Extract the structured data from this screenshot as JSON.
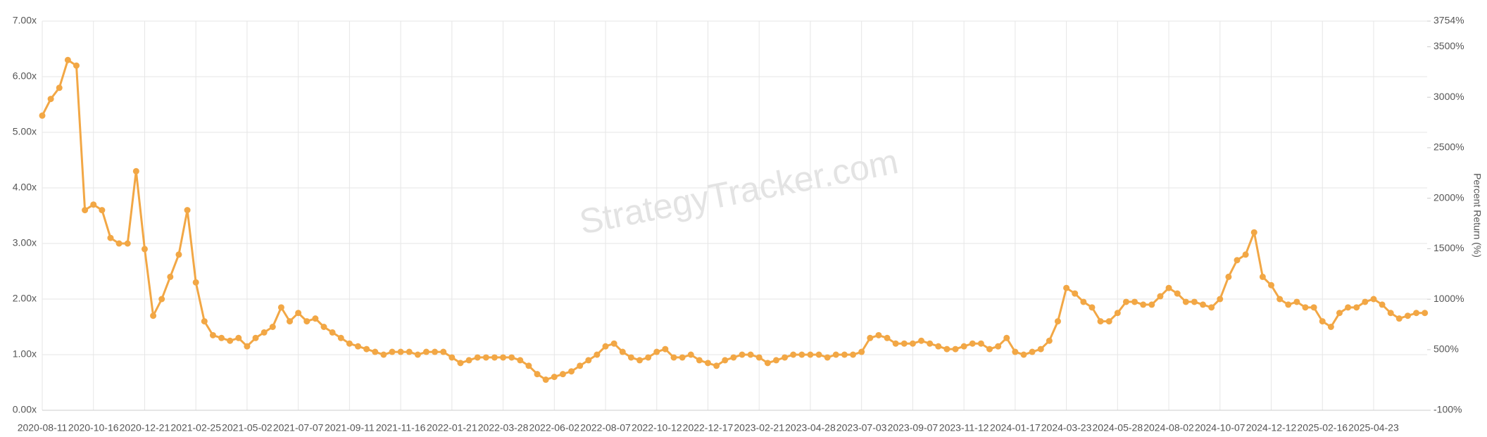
{
  "chart_data": {
    "type": "line",
    "watermark": "StrategyTracker.com",
    "y2label": "Percent Return (%)",
    "color": "#f2a745",
    "grid": true,
    "xlim": [
      "2020-08-11",
      "2025-07-01"
    ],
    "xticks": [
      "2020-08-11",
      "2020-10-16",
      "2020-12-21",
      "2021-02-25",
      "2021-05-02",
      "2021-07-07",
      "2021-09-11",
      "2021-11-16",
      "2022-01-21",
      "2022-03-28",
      "2022-06-02",
      "2022-08-07",
      "2022-10-12",
      "2022-12-17",
      "2023-02-21",
      "2023-04-28",
      "2023-07-03",
      "2023-09-07",
      "2023-11-12",
      "2024-01-17",
      "2024-03-23",
      "2024-05-28",
      "2024-08-02",
      "2024-10-07",
      "2024-12-12",
      "2025-02-16",
      "2025-04-23"
    ],
    "ylim": [
      0,
      7
    ],
    "yticks": [
      {
        "value": 0,
        "label": "0.00x"
      },
      {
        "value": 1,
        "label": "1.00x"
      },
      {
        "value": 2,
        "label": "2.00x"
      },
      {
        "value": 3,
        "label": "3.00x"
      },
      {
        "value": 4,
        "label": "4.00x"
      },
      {
        "value": 5,
        "label": "5.00x"
      },
      {
        "value": 6,
        "label": "6.00x"
      },
      {
        "value": 7,
        "label": "7.00x"
      }
    ],
    "y2lim": [
      -100,
      3754
    ],
    "y2ticks": [
      {
        "value": -100,
        "label": "-100%"
      },
      {
        "value": 500,
        "label": "500%"
      },
      {
        "value": 1000,
        "label": "1000%"
      },
      {
        "value": 1500,
        "label": "1500%"
      },
      {
        "value": 2000,
        "label": "2000%"
      },
      {
        "value": 2500,
        "label": "2500%"
      },
      {
        "value": 3000,
        "label": "3000%"
      },
      {
        "value": 3500,
        "label": "3500%"
      },
      {
        "value": 3754,
        "label": "3754%"
      }
    ],
    "x": [
      "2020-08-11",
      "2020-08-22",
      "2020-09-02",
      "2020-09-13",
      "2020-09-24",
      "2020-10-05",
      "2020-10-16",
      "2020-10-27",
      "2020-11-07",
      "2020-11-18",
      "2020-11-29",
      "2020-12-10",
      "2020-12-21",
      "2021-01-01",
      "2021-01-12",
      "2021-01-23",
      "2021-02-03",
      "2021-02-14",
      "2021-02-25",
      "2021-03-08",
      "2021-03-19",
      "2021-03-30",
      "2021-04-10",
      "2021-04-21",
      "2021-05-02",
      "2021-05-13",
      "2021-05-24",
      "2021-06-04",
      "2021-06-15",
      "2021-06-26",
      "2021-07-07",
      "2021-07-18",
      "2021-07-29",
      "2021-08-09",
      "2021-08-20",
      "2021-08-31",
      "2021-09-11",
      "2021-09-22",
      "2021-10-03",
      "2021-10-14",
      "2021-10-25",
      "2021-11-05",
      "2021-11-16",
      "2021-11-27",
      "2021-12-08",
      "2021-12-19",
      "2021-12-30",
      "2022-01-10",
      "2022-01-21",
      "2022-02-01",
      "2022-02-12",
      "2022-02-23",
      "2022-03-06",
      "2022-03-17",
      "2022-03-28",
      "2022-04-08",
      "2022-04-19",
      "2022-04-30",
      "2022-05-11",
      "2022-05-22",
      "2022-06-02",
      "2022-06-13",
      "2022-06-24",
      "2022-07-05",
      "2022-07-16",
      "2022-07-27",
      "2022-08-07",
      "2022-08-18",
      "2022-08-29",
      "2022-09-09",
      "2022-09-20",
      "2022-10-01",
      "2022-10-12",
      "2022-10-23",
      "2022-11-03",
      "2022-11-14",
      "2022-11-25",
      "2022-12-06",
      "2022-12-17",
      "2022-12-28",
      "2023-01-08",
      "2023-01-19",
      "2023-01-30",
      "2023-02-10",
      "2023-02-21",
      "2023-03-04",
      "2023-03-15",
      "2023-03-26",
      "2023-04-06",
      "2023-04-17",
      "2023-04-28",
      "2023-05-09",
      "2023-05-20",
      "2023-05-31",
      "2023-06-11",
      "2023-06-22",
      "2023-07-03",
      "2023-07-14",
      "2023-07-25",
      "2023-08-05",
      "2023-08-16",
      "2023-08-27",
      "2023-09-07",
      "2023-09-18",
      "2023-09-29",
      "2023-10-10",
      "2023-10-21",
      "2023-11-01",
      "2023-11-12",
      "2023-11-23",
      "2023-12-04",
      "2023-12-15",
      "2023-12-26",
      "2024-01-06",
      "2024-01-17",
      "2024-01-28",
      "2024-02-08",
      "2024-02-19",
      "2024-03-01",
      "2024-03-12",
      "2024-03-23",
      "2024-04-03",
      "2024-04-14",
      "2024-04-25",
      "2024-05-06",
      "2024-05-17",
      "2024-05-28",
      "2024-06-08",
      "2024-06-19",
      "2024-06-30",
      "2024-07-11",
      "2024-07-22",
      "2024-08-02",
      "2024-08-13",
      "2024-08-24",
      "2024-09-04",
      "2024-09-15",
      "2024-09-26",
      "2024-10-07",
      "2024-10-18",
      "2024-10-29",
      "2024-11-09",
      "2024-11-20",
      "2024-12-01",
      "2024-12-12",
      "2024-12-23",
      "2025-01-03",
      "2025-01-14",
      "2025-01-25",
      "2025-02-05",
      "2025-02-16",
      "2025-02-27",
      "2025-03-10",
      "2025-03-21",
      "2025-04-01",
      "2025-04-12",
      "2025-04-23",
      "2025-05-04",
      "2025-05-15",
      "2025-05-26",
      "2025-06-06",
      "2025-06-17",
      "2025-06-28"
    ],
    "values": [
      5.3,
      5.6,
      5.8,
      6.3,
      6.2,
      3.6,
      3.7,
      3.6,
      3.1,
      3.0,
      3.0,
      4.3,
      2.9,
      1.7,
      2.0,
      2.4,
      2.8,
      3.6,
      2.3,
      1.6,
      1.35,
      1.3,
      1.25,
      1.3,
      1.15,
      1.3,
      1.4,
      1.5,
      1.85,
      1.6,
      1.75,
      1.6,
      1.65,
      1.5,
      1.4,
      1.3,
      1.2,
      1.15,
      1.1,
      1.05,
      1.0,
      1.05,
      1.05,
      1.05,
      1.0,
      1.05,
      1.05,
      1.05,
      0.95,
      0.85,
      0.9,
      0.95,
      0.95,
      0.95,
      0.95,
      0.95,
      0.9,
      0.8,
      0.65,
      0.55,
      0.6,
      0.65,
      0.7,
      0.8,
      0.9,
      1.0,
      1.15,
      1.2,
      1.05,
      0.95,
      0.9,
      0.95,
      1.05,
      1.1,
      0.95,
      0.95,
      1.0,
      0.9,
      0.85,
      0.8,
      0.9,
      0.95,
      1.0,
      1.0,
      0.95,
      0.85,
      0.9,
      0.95,
      1.0,
      1.0,
      1.0,
      1.0,
      0.95,
      1.0,
      1.0,
      1.0,
      1.05,
      1.3,
      1.35,
      1.3,
      1.2,
      1.2,
      1.2,
      1.25,
      1.2,
      1.15,
      1.1,
      1.1,
      1.15,
      1.2,
      1.2,
      1.1,
      1.15,
      1.3,
      1.05,
      1.0,
      1.05,
      1.1,
      1.25,
      1.6,
      2.2,
      2.1,
      1.95,
      1.85,
      1.6,
      1.6,
      1.75,
      1.95,
      1.95,
      1.9,
      1.9,
      2.05,
      2.2,
      2.1,
      1.95,
      1.95,
      1.9,
      1.85,
      2.0,
      2.4,
      2.7,
      2.8,
      3.2,
      2.4,
      2.25,
      2.0,
      1.9,
      1.95,
      1.85,
      1.85,
      1.6,
      1.5,
      1.75,
      1.85,
      1.85,
      1.95,
      2.0,
      1.9,
      1.75,
      1.65,
      1.7,
      1.75,
      1.75
    ]
  }
}
